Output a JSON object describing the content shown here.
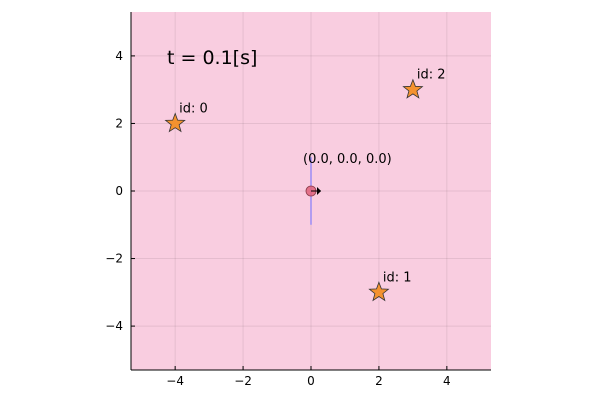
{
  "chart_data": {
    "type": "scatter",
    "xlim": [
      -5.3,
      5.3
    ],
    "ylim": [
      -5.3,
      5.3
    ],
    "grid": true,
    "background_color": "#f9cde0",
    "xticks": [
      -4,
      -2,
      0,
      2,
      4
    ],
    "yticks": [
      -4,
      -2,
      0,
      2,
      4
    ],
    "xtick_labels": [
      "−4",
      "−2",
      "0",
      "2",
      "4"
    ],
    "ytick_labels": [
      "−4",
      "−2",
      "0",
      "2",
      "4"
    ],
    "annotation": "t = 0.1[s]",
    "landmarks": {
      "marker": "star",
      "color": "#f4922f",
      "points": [
        {
          "x": -4,
          "y": 2,
          "label": "id: 0"
        },
        {
          "x": 2,
          "y": -3,
          "label": "id: 1"
        },
        {
          "x": 3,
          "y": 3,
          "label": "id: 2"
        }
      ]
    },
    "robot": {
      "x": 0.0,
      "y": 0.0,
      "theta": 0.0,
      "pose_label": "(0.0, 0.0, 0.0)",
      "color": "#e0627a",
      "line_color": "#6b6bff",
      "line_y_range": [
        -1.0,
        1.0
      ]
    }
  }
}
